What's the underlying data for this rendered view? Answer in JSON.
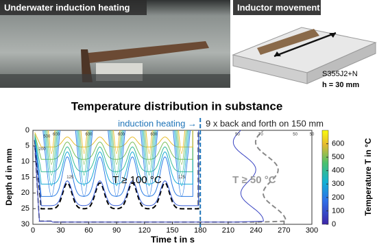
{
  "photos": {
    "left_label": "Underwater induction heating",
    "right_label": "Inductor movement",
    "material": "S355J2+N",
    "thickness": "h = 30 mm"
  },
  "chart_data": {
    "type": "contour",
    "title": "Temperature distribution in substance",
    "x_label": "Time  t in s",
    "y_label": "Depth d in mm",
    "colorbar_label": "Temperature  T in °C",
    "annotations": {
      "heating": "induction heating →",
      "motion": "9 x back and forth on 150 mm",
      "region_100": "T ≥ 100 °C",
      "region_50": "T ≥ 50 °C"
    },
    "heating_end": 180,
    "xlim": [
      0,
      300
    ],
    "xticks": [
      0,
      30,
      60,
      90,
      120,
      150,
      180,
      210,
      240,
      270,
      300
    ],
    "ylim": [
      0,
      30
    ],
    "yticks": [
      0,
      5,
      10,
      15,
      20,
      25,
      30
    ],
    "y_inverted": true,
    "clim": [
      0,
      700
    ],
    "cticks": [
      0,
      100,
      200,
      300,
      400,
      500,
      600
    ],
    "levels": [
      50,
      70,
      100,
      125,
      200,
      300,
      400,
      500,
      600
    ],
    "dashed_levels": [
      100,
      50
    ],
    "contour_labels": [
      500,
      600,
      600,
      600,
      600,
      200,
      125,
      125,
      50,
      70,
      50,
      50
    ]
  }
}
